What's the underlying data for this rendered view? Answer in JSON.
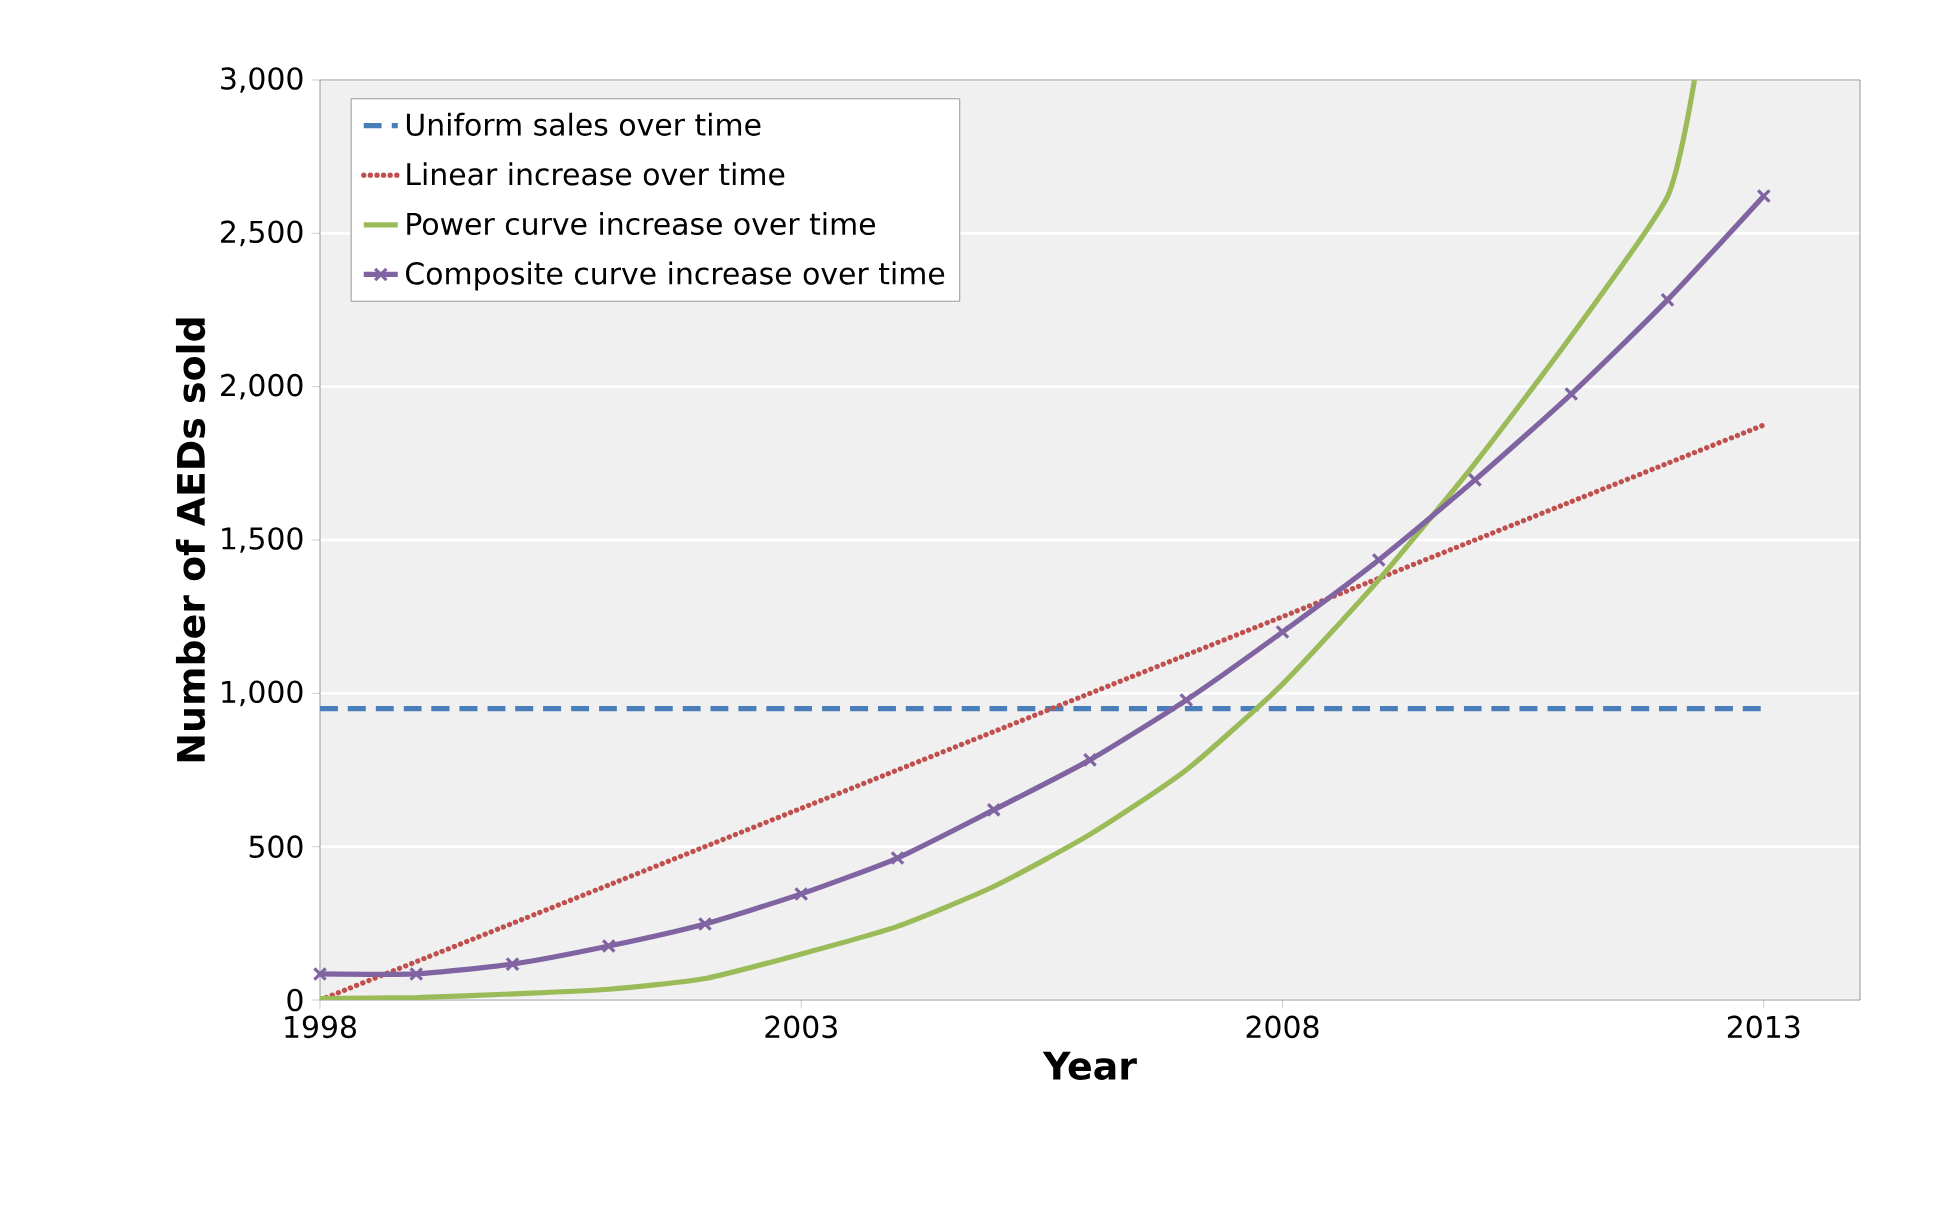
{
  "chart_data": {
    "type": "line",
    "xlabel": "Year",
    "ylabel": "Number of AEDs sold",
    "x": [
      1998,
      1999,
      2000,
      2001,
      2002,
      2003,
      2004,
      2005,
      2006,
      2007,
      2008,
      2009,
      2010,
      2011,
      2012,
      2013
    ],
    "series": [
      {
        "name": "Uniform sales over time",
        "color": "#4a7ebb",
        "line_style": "dashed",
        "marker": "none",
        "values": [
          950,
          950,
          950,
          950,
          950,
          950,
          950,
          950,
          950,
          950,
          950,
          950,
          950,
          950,
          950,
          950
        ]
      },
      {
        "name": "Linear increase over time",
        "color": "#c0504d",
        "line_style": "dotted",
        "marker": "none",
        "values": [
          0,
          125,
          250,
          375,
          500,
          625,
          750,
          875,
          1000,
          1125,
          1250,
          1375,
          1500,
          1625,
          1750,
          1875
        ]
      },
      {
        "name": "Power curve increase over time",
        "color": "#9bbb59",
        "line_style": "solid",
        "marker": "none",
        "x": [
          1998,
          1999,
          2000,
          2001,
          2002,
          2003,
          2004,
          2005,
          2006,
          2007,
          2008,
          2009,
          2010,
          2011,
          2012,
          2012.28
        ],
        "values": [
          5,
          8,
          20,
          35,
          70,
          150,
          240,
          370,
          540,
          750,
          1030,
          1370,
          1750,
          2165,
          2620,
          3000
        ]
      },
      {
        "name": "Composite curve increase over time",
        "color": "#8064a2",
        "line_style": "solid",
        "marker": "cross",
        "values": [
          85,
          85,
          117,
          176,
          248,
          346,
          463,
          620,
          783,
          978,
          1200,
          1435,
          1696,
          1976,
          2283,
          2622
        ]
      }
    ],
    "xlim": [
      1998,
      2014
    ],
    "xticks": [
      1998,
      2003,
      2008,
      2013
    ],
    "ylim": [
      0,
      3000
    ],
    "yticks": [
      {
        "value": 0,
        "label": "0"
      },
      {
        "value": 500,
        "label": "500"
      },
      {
        "value": 1000,
        "label": "1,000"
      },
      {
        "value": 1500,
        "label": "1,500"
      },
      {
        "value": 2000,
        "label": "2,000"
      },
      {
        "value": 2500,
        "label": "2,500"
      },
      {
        "value": 3000,
        "label": "3,000"
      }
    ],
    "grid": "y",
    "legend": "top left"
  }
}
